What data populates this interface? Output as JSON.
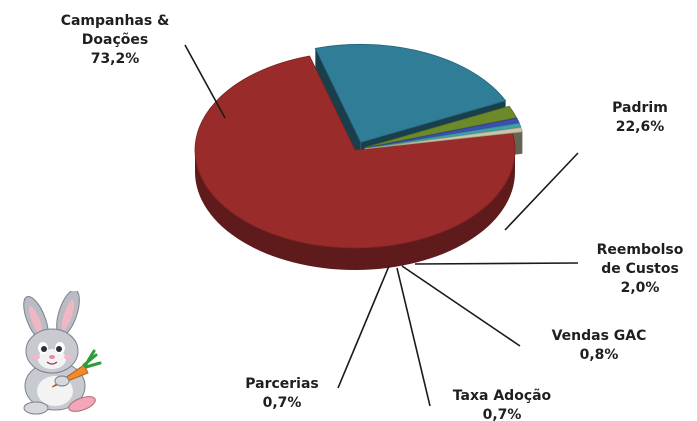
{
  "chart_data": {
    "type": "pie",
    "style": "3d-exploded",
    "title": "",
    "slices": [
      {
        "label_lines": [
          "Campanhas &",
          "Doações"
        ],
        "value_text": "73,2%",
        "value": 73.2,
        "color": "#9a2b2b"
      },
      {
        "label_lines": [
          "Padrim"
        ],
        "value_text": "22,6%",
        "value": 22.6,
        "color": "#2f7d96"
      },
      {
        "label_lines": [
          "Reembolso",
          "de Custos"
        ],
        "value_text": "2,0%",
        "value": 2.0,
        "color": "#6c8a2a"
      },
      {
        "label_lines": [
          "Vendas GAC"
        ],
        "value_text": "0,8%",
        "value": 0.8,
        "color": "#3b4fb5"
      },
      {
        "label_lines": [
          "Taxa Adoção"
        ],
        "value_text": "0,7%",
        "value": 0.7,
        "color": "#3fa0a8"
      },
      {
        "label_lines": [
          "Parcerias"
        ],
        "value_text": "0,7%",
        "value": 0.7,
        "color": "#c9c7a8"
      }
    ]
  },
  "decoration": {
    "icon": "bunny-holding-carrot-icon"
  }
}
